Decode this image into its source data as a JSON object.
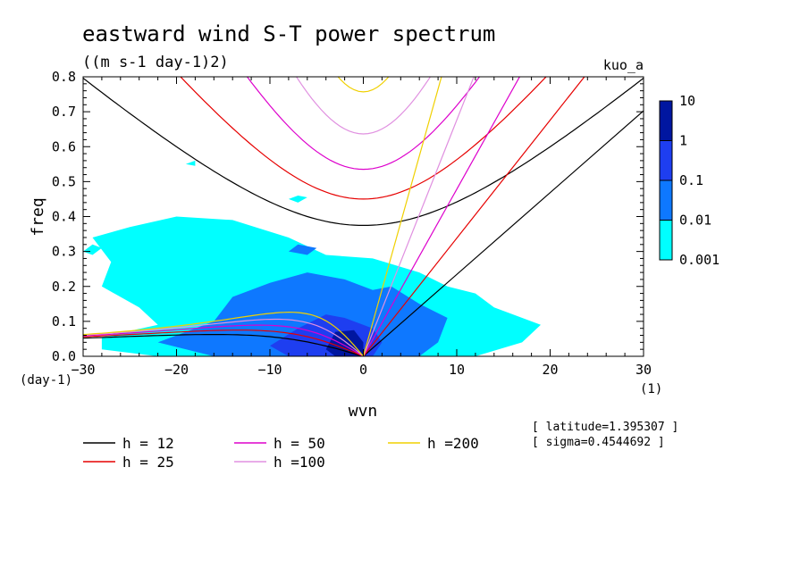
{
  "chart_data": {
    "type": "heatmap",
    "title": "eastward wind S-T power spectrum",
    "subtitle": "((m s-1 day-1)2)",
    "tag": "kuo_a",
    "xlabel": "wvn",
    "ylabel": "freq",
    "x_unit": "(1)",
    "y_unit": "(day-1)",
    "xlim": [
      -30,
      30
    ],
    "ylim": [
      0,
      0.8
    ],
    "x_ticks": [
      -30,
      -20,
      -10,
      0,
      10,
      20,
      30
    ],
    "y_ticks": [
      0.0,
      0.1,
      0.2,
      0.3,
      0.4,
      0.5,
      0.6,
      0.7,
      0.8
    ],
    "colorbar": {
      "labels": [
        "10",
        "1",
        "0.1",
        "0.01",
        "0.001"
      ],
      "colors": [
        "#3a14a8",
        "#0016a0",
        "#1e3ef0",
        "#0e78ff",
        "#00ffff"
      ]
    },
    "info": [
      "[ latitude=1.395307 ]",
      "[ sigma=0.4544692 ]"
    ],
    "dispersion_curves": [
      {
        "name": "h = 12",
        "h": 12,
        "color": "#000000"
      },
      {
        "name": "h = 25",
        "h": 25,
        "color": "#e60000"
      },
      {
        "name": "h = 50",
        "h": 50,
        "color": "#dd00cc"
      },
      {
        "name": "h =100",
        "h": 100,
        "color": "#e090e0"
      },
      {
        "name": "h =200",
        "h": 200,
        "color": "#f0d000"
      }
    ],
    "power_regions": [
      {
        "level": 0.001,
        "color": "#00ffff",
        "polygon": [
          [
            -28,
            0.055
          ],
          [
            -22,
            0.09
          ],
          [
            -24,
            0.14
          ],
          [
            -28,
            0.2
          ],
          [
            -27,
            0.27
          ],
          [
            -29,
            0.34
          ],
          [
            -25,
            0.37
          ],
          [
            -20,
            0.4
          ],
          [
            -14,
            0.39
          ],
          [
            -8,
            0.34
          ],
          [
            -4,
            0.29
          ],
          [
            1,
            0.28
          ],
          [
            6,
            0.24
          ],
          [
            9,
            0.2
          ],
          [
            12,
            0.18
          ],
          [
            14,
            0.14
          ],
          [
            19,
            0.09
          ],
          [
            17,
            0.04
          ],
          [
            12,
            0.0
          ],
          [
            -22,
            0.0
          ],
          [
            -28,
            0.02
          ]
        ]
      },
      {
        "level": 0.001,
        "color": "#00ffff",
        "polygon": [
          [
            -30,
            0.3
          ],
          [
            -29,
            0.29
          ],
          [
            -28,
            0.31
          ],
          [
            -29,
            0.32
          ]
        ]
      },
      {
        "level": 0.001,
        "color": "#00ffff",
        "polygon": [
          [
            -19,
            0.55
          ],
          [
            -18,
            0.545
          ],
          [
            -18,
            0.56
          ]
        ]
      },
      {
        "level": 0.001,
        "color": "#00ffff",
        "polygon": [
          [
            -8,
            0.45
          ],
          [
            -7,
            0.44
          ],
          [
            -6,
            0.455
          ],
          [
            -7,
            0.46
          ]
        ]
      },
      {
        "level": 0.01,
        "color": "#0e78ff",
        "polygon": [
          [
            -22,
            0.04
          ],
          [
            -16,
            0.1
          ],
          [
            -14,
            0.17
          ],
          [
            -10,
            0.21
          ],
          [
            -6,
            0.24
          ],
          [
            -2,
            0.22
          ],
          [
            1,
            0.19
          ],
          [
            3,
            0.2
          ],
          [
            6,
            0.15
          ],
          [
            9,
            0.11
          ],
          [
            8,
            0.04
          ],
          [
            6,
            0.0
          ],
          [
            -16,
            0.0
          ]
        ]
      },
      {
        "level": 0.01,
        "color": "#0e78ff",
        "polygon": [
          [
            -8,
            0.3
          ],
          [
            -6,
            0.29
          ],
          [
            -5,
            0.31
          ],
          [
            -7,
            0.32
          ]
        ]
      },
      {
        "level": 0.1,
        "color": "#1e3ef0",
        "polygon": [
          [
            -10,
            0.03
          ],
          [
            -7,
            0.08
          ],
          [
            -4,
            0.12
          ],
          [
            -2,
            0.11
          ],
          [
            1,
            0.08
          ],
          [
            2,
            0.04
          ],
          [
            1,
            0.0
          ],
          [
            -8,
            0.0
          ]
        ]
      },
      {
        "level": 1,
        "color": "#0016a0",
        "polygon": [
          [
            -4,
            0.02
          ],
          [
            -3,
            0.07
          ],
          [
            -1,
            0.075
          ],
          [
            0,
            0.04
          ],
          [
            0,
            0.0
          ],
          [
            -3,
            0.0
          ]
        ]
      }
    ]
  }
}
